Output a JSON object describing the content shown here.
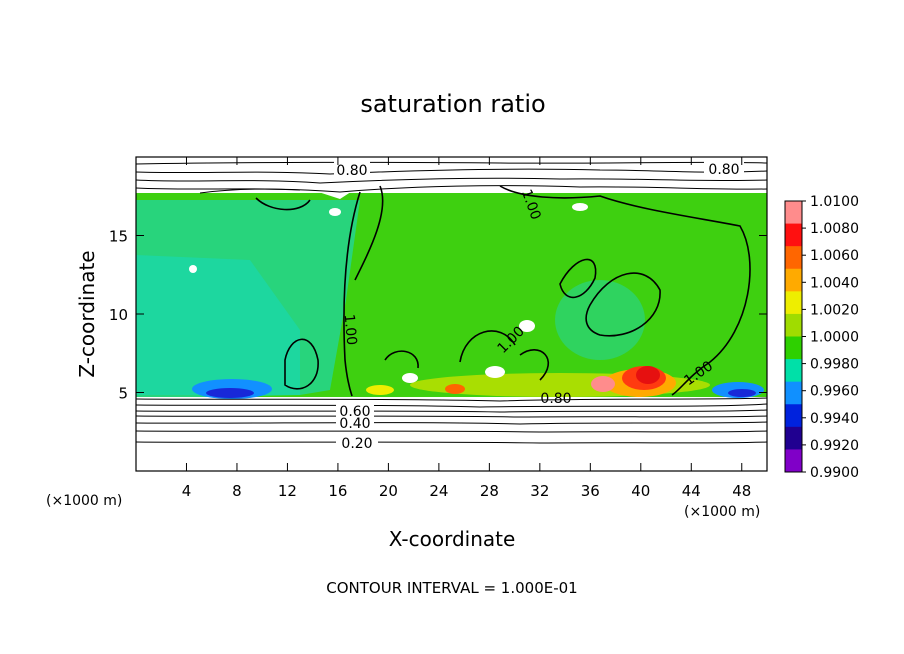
{
  "chart_data": {
    "type": "heatmap",
    "title": "saturation ratio",
    "xlabel": "X-coordinate",
    "ylabel": "Z-coordinate",
    "x_unit_label": "(×1000 m)",
    "x_unit_label_right": "(×1000 m)",
    "xlim": [
      0,
      50
    ],
    "ylim": [
      0,
      20
    ],
    "x_ticks": [
      "4",
      "8",
      "12",
      "16",
      "20",
      "24",
      "28",
      "32",
      "36",
      "40",
      "44",
      "48"
    ],
    "y_ticks": [
      "5",
      "10",
      "15"
    ],
    "x_tick_values": [
      4,
      8,
      12,
      16,
      20,
      24,
      28,
      32,
      36,
      40,
      44,
      48
    ],
    "y_tick_values": [
      5,
      10,
      15
    ],
    "colorbar": {
      "labels": [
        "1.0100",
        "1.0080",
        "1.0060",
        "1.0040",
        "1.0020",
        "1.0000",
        "0.9980",
        "0.9960",
        "0.9940",
        "0.9920",
        "0.9900"
      ],
      "colors": [
        "#ff8c8c",
        "#ff1010",
        "#ff6600",
        "#ffaa00",
        "#eeee00",
        "#a0dc00",
        "#2ed000",
        "#00e0a8",
        "#1090ff",
        "#0022dd",
        "#200090",
        "#8000c8"
      ]
    },
    "contour_labels": [
      "0.80",
      "0.80",
      "1.00",
      "1.00",
      "1.00",
      "1.00",
      "0.80",
      "0.60",
      "0.40",
      "0.20"
    ],
    "note": "CONTOUR INTERVAL = 1.000E-01"
  }
}
